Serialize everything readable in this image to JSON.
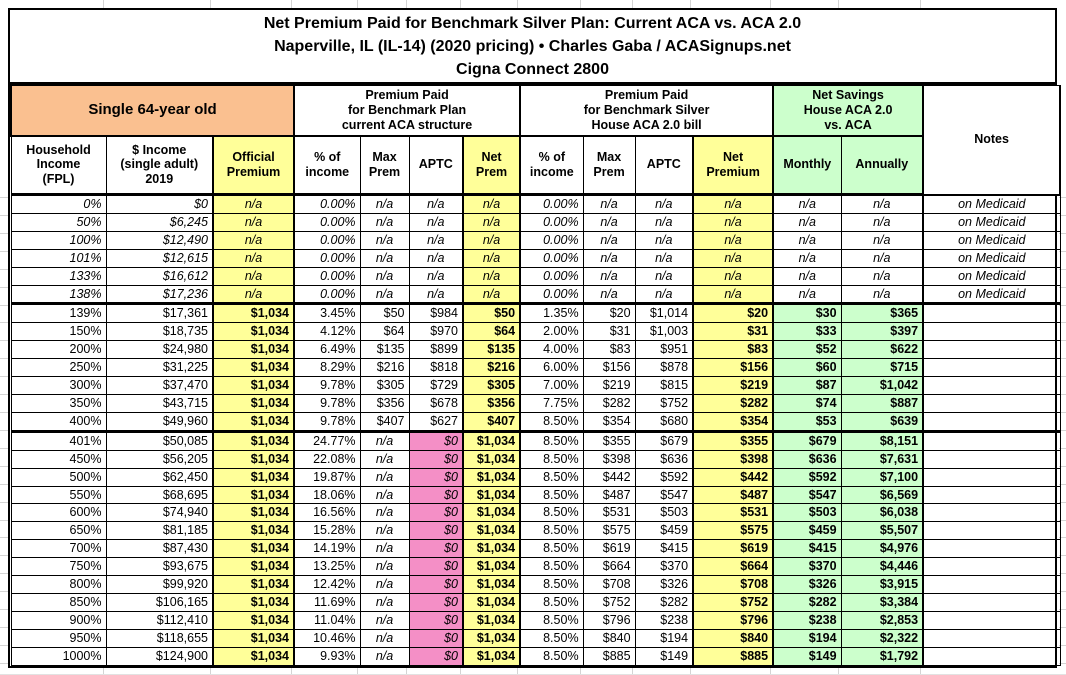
{
  "title": {
    "line1": "Net Premium Paid for Benchmark Silver Plan: Current ACA vs. ACA 2.0",
    "line2": "Naperville, IL (IL-14) (2020 pricing) • Charles Gaba / ACASignups.net",
    "line3": "Cigna Connect 2800"
  },
  "palette": {
    "orange": "#FAC090",
    "yellow": "#FFFF99",
    "green": "#CCFFCC",
    "pink": "#F48FC6",
    "grid_black": "#000000",
    "faint_grid": "#D4D4D4"
  },
  "header": {
    "groups": [
      {
        "label": "Single 64-year old",
        "span": 3,
        "bg": "orange",
        "big": true
      },
      {
        "label": "Premium Paid\nfor Benchmark Plan\ncurrent ACA structure",
        "span": 4,
        "bg": "white"
      },
      {
        "label": "Premium Paid\nfor Benchmark Silver\nHouse ACA 2.0 bill",
        "span": 4,
        "bg": "white"
      },
      {
        "label": "Net Savings\nHouse ACA 2.0\nvs. ACA",
        "span": 2,
        "bg": "green"
      },
      {
        "label": "Notes",
        "span": 1,
        "bg": "white",
        "rowspan": 2
      }
    ],
    "columns": [
      {
        "key": "fpl",
        "label": "Household\nIncome\n(FPL)",
        "bg": "white"
      },
      {
        "key": "income",
        "label": "$ Income\n(single adult)\n2019",
        "bg": "white"
      },
      {
        "key": "official-premium",
        "label": "Official\nPremium",
        "bg": "yellow"
      },
      {
        "key": "pct-income-aca",
        "label": "% of\nincome",
        "bg": "white"
      },
      {
        "key": "max-prem-aca",
        "label": "Max\nPrem",
        "bg": "white"
      },
      {
        "key": "aptc-aca",
        "label": "APTC",
        "bg": "white"
      },
      {
        "key": "net-prem-aca",
        "label": "Net\nPrem",
        "bg": "yellow"
      },
      {
        "key": "pct-income-aca2",
        "label": "% of\nincome",
        "bg": "white"
      },
      {
        "key": "max-prem-aca2",
        "label": "Max\nPrem",
        "bg": "white"
      },
      {
        "key": "aptc-aca2",
        "label": "APTC",
        "bg": "white"
      },
      {
        "key": "net-premium-aca2",
        "label": "Net\nPremium",
        "bg": "yellow"
      },
      {
        "key": "savings-monthly",
        "label": "Monthly",
        "bg": "green"
      },
      {
        "key": "savings-annually",
        "label": "Annually",
        "bg": "green"
      }
    ]
  },
  "table": {
    "rows": [
      {
        "medicaid": true,
        "cells": [
          "0%",
          "$0",
          "n/a",
          "0.00%",
          "n/a",
          "n/a",
          "n/a",
          "0.00%",
          "n/a",
          "n/a",
          "n/a",
          "n/a",
          "n/a",
          "on Medicaid"
        ]
      },
      {
        "medicaid": true,
        "cells": [
          "50%",
          "$6,245",
          "n/a",
          "0.00%",
          "n/a",
          "n/a",
          "n/a",
          "0.00%",
          "n/a",
          "n/a",
          "n/a",
          "n/a",
          "n/a",
          "on Medicaid"
        ]
      },
      {
        "medicaid": true,
        "cells": [
          "100%",
          "$12,490",
          "n/a",
          "0.00%",
          "n/a",
          "n/a",
          "n/a",
          "0.00%",
          "n/a",
          "n/a",
          "n/a",
          "n/a",
          "n/a",
          "on Medicaid"
        ]
      },
      {
        "medicaid": true,
        "cells": [
          "101%",
          "$12,615",
          "n/a",
          "0.00%",
          "n/a",
          "n/a",
          "n/a",
          "0.00%",
          "n/a",
          "n/a",
          "n/a",
          "n/a",
          "n/a",
          "on Medicaid"
        ]
      },
      {
        "medicaid": true,
        "cells": [
          "133%",
          "$16,612",
          "n/a",
          "0.00%",
          "n/a",
          "n/a",
          "n/a",
          "0.00%",
          "n/a",
          "n/a",
          "n/a",
          "n/a",
          "n/a",
          "on Medicaid"
        ]
      },
      {
        "medicaid": true,
        "cells": [
          "138%",
          "$17,236",
          "n/a",
          "0.00%",
          "n/a",
          "n/a",
          "n/a",
          "0.00%",
          "n/a",
          "n/a",
          "n/a",
          "n/a",
          "n/a",
          "on Medicaid"
        ]
      },
      {
        "thick_top": true,
        "cells": [
          "139%",
          "$17,361",
          "$1,034",
          "3.45%",
          "$50",
          "$984",
          "$50",
          "1.35%",
          "$20",
          "$1,014",
          "$20",
          "$30",
          "$365",
          ""
        ]
      },
      {
        "cells": [
          "150%",
          "$18,735",
          "$1,034",
          "4.12%",
          "$64",
          "$970",
          "$64",
          "2.00%",
          "$31",
          "$1,003",
          "$31",
          "$33",
          "$397",
          ""
        ]
      },
      {
        "cells": [
          "200%",
          "$24,980",
          "$1,034",
          "6.49%",
          "$135",
          "$899",
          "$135",
          "4.00%",
          "$83",
          "$951",
          "$83",
          "$52",
          "$622",
          ""
        ]
      },
      {
        "cells": [
          "250%",
          "$31,225",
          "$1,034",
          "8.29%",
          "$216",
          "$818",
          "$216",
          "6.00%",
          "$156",
          "$878",
          "$156",
          "$60",
          "$715",
          ""
        ]
      },
      {
        "cells": [
          "300%",
          "$37,470",
          "$1,034",
          "9.78%",
          "$305",
          "$729",
          "$305",
          "7.00%",
          "$219",
          "$815",
          "$219",
          "$87",
          "$1,042",
          ""
        ]
      },
      {
        "cells": [
          "350%",
          "$43,715",
          "$1,034",
          "9.78%",
          "$356",
          "$678",
          "$356",
          "7.75%",
          "$282",
          "$752",
          "$282",
          "$74",
          "$887",
          ""
        ]
      },
      {
        "cells": [
          "400%",
          "$49,960",
          "$1,034",
          "9.78%",
          "$407",
          "$627",
          "$407",
          "8.50%",
          "$354",
          "$680",
          "$354",
          "$53",
          "$639",
          ""
        ]
      },
      {
        "thick_top": true,
        "cells": [
          "401%",
          "$50,085",
          "$1,034",
          "24.77%",
          "n/a",
          "$0",
          "$1,034",
          "8.50%",
          "$355",
          "$679",
          "$355",
          "$679",
          "$8,151",
          ""
        ]
      },
      {
        "cells": [
          "450%",
          "$56,205",
          "$1,034",
          "22.08%",
          "n/a",
          "$0",
          "$1,034",
          "8.50%",
          "$398",
          "$636",
          "$398",
          "$636",
          "$7,631",
          ""
        ]
      },
      {
        "cells": [
          "500%",
          "$62,450",
          "$1,034",
          "19.87%",
          "n/a",
          "$0",
          "$1,034",
          "8.50%",
          "$442",
          "$592",
          "$442",
          "$592",
          "$7,100",
          ""
        ]
      },
      {
        "cells": [
          "550%",
          "$68,695",
          "$1,034",
          "18.06%",
          "n/a",
          "$0",
          "$1,034",
          "8.50%",
          "$487",
          "$547",
          "$487",
          "$547",
          "$6,569",
          ""
        ]
      },
      {
        "cells": [
          "600%",
          "$74,940",
          "$1,034",
          "16.56%",
          "n/a",
          "$0",
          "$1,034",
          "8.50%",
          "$531",
          "$503",
          "$531",
          "$503",
          "$6,038",
          ""
        ]
      },
      {
        "cells": [
          "650%",
          "$81,185",
          "$1,034",
          "15.28%",
          "n/a",
          "$0",
          "$1,034",
          "8.50%",
          "$575",
          "$459",
          "$575",
          "$459",
          "$5,507",
          ""
        ]
      },
      {
        "cells": [
          "700%",
          "$87,430",
          "$1,034",
          "14.19%",
          "n/a",
          "$0",
          "$1,034",
          "8.50%",
          "$619",
          "$415",
          "$619",
          "$415",
          "$4,976",
          ""
        ]
      },
      {
        "cells": [
          "750%",
          "$93,675",
          "$1,034",
          "13.25%",
          "n/a",
          "$0",
          "$1,034",
          "8.50%",
          "$664",
          "$370",
          "$664",
          "$370",
          "$4,446",
          ""
        ]
      },
      {
        "cells": [
          "800%",
          "$99,920",
          "$1,034",
          "12.42%",
          "n/a",
          "$0",
          "$1,034",
          "8.50%",
          "$708",
          "$326",
          "$708",
          "$326",
          "$3,915",
          ""
        ]
      },
      {
        "cells": [
          "850%",
          "$106,165",
          "$1,034",
          "11.69%",
          "n/a",
          "$0",
          "$1,034",
          "8.50%",
          "$752",
          "$282",
          "$752",
          "$282",
          "$3,384",
          ""
        ]
      },
      {
        "cells": [
          "900%",
          "$112,410",
          "$1,034",
          "11.04%",
          "n/a",
          "$0",
          "$1,034",
          "8.50%",
          "$796",
          "$238",
          "$796",
          "$238",
          "$2,853",
          ""
        ]
      },
      {
        "cells": [
          "950%",
          "$118,655",
          "$1,034",
          "10.46%",
          "n/a",
          "$0",
          "$1,034",
          "8.50%",
          "$840",
          "$194",
          "$840",
          "$194",
          "$2,322",
          ""
        ]
      },
      {
        "cells": [
          "1000%",
          "$124,900",
          "$1,034",
          "9.93%",
          "n/a",
          "$0",
          "$1,034",
          "8.50%",
          "$885",
          "$149",
          "$885",
          "$149",
          "$1,792",
          ""
        ]
      }
    ]
  }
}
